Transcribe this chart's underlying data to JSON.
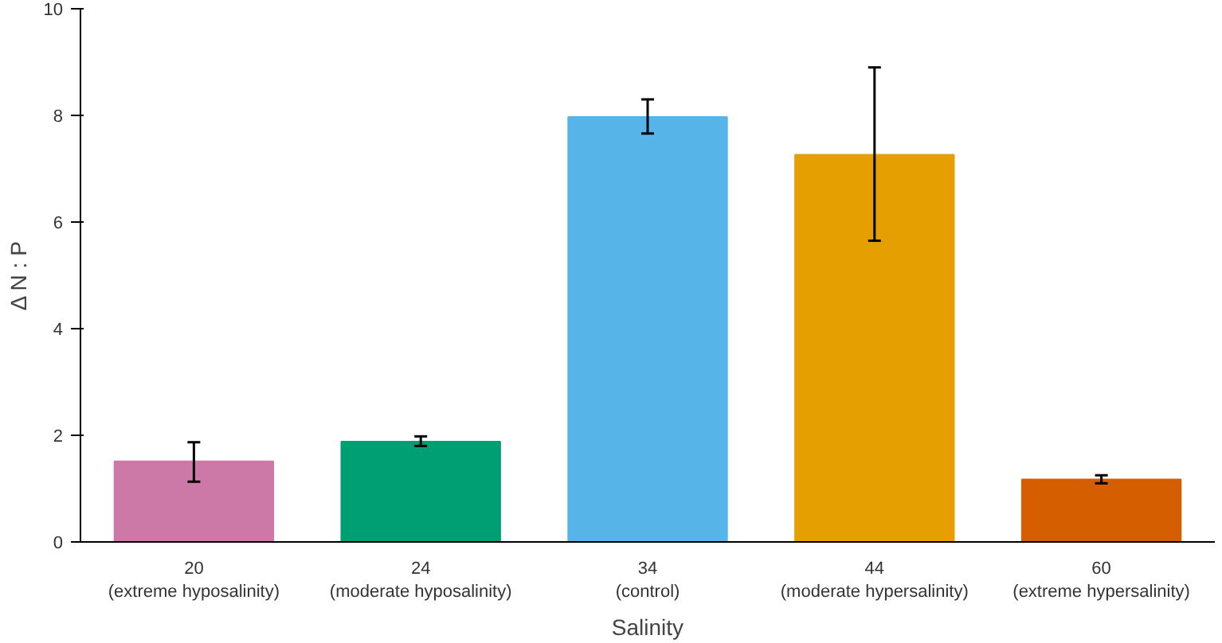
{
  "chart_data": {
    "type": "bar",
    "categories": [
      "20\n(extreme hyposalinity)",
      "24\n(moderate hyposalinity)",
      "34\n(control)",
      "44\n(moderate hypersalinity)",
      "60\n(extreme hypersalinity)"
    ],
    "values": [
      1.51,
      1.88,
      7.97,
      7.26,
      1.17
    ],
    "errors": [
      [
        1.13,
        1.87
      ],
      [
        1.8,
        1.98
      ],
      [
        7.66,
        8.3
      ],
      [
        5.65,
        8.9
      ],
      [
        1.1,
        1.25
      ]
    ],
    "colors": [
      "#cc79a7",
      "#009e73",
      "#56b4e9",
      "#e69f00",
      "#d55e00"
    ],
    "xlabel": "Salinity",
    "ylabel": "Δ N : P",
    "ylim": [
      0,
      10
    ],
    "yticks": [
      0,
      2,
      4,
      6,
      8,
      10
    ],
    "grid": false
  }
}
